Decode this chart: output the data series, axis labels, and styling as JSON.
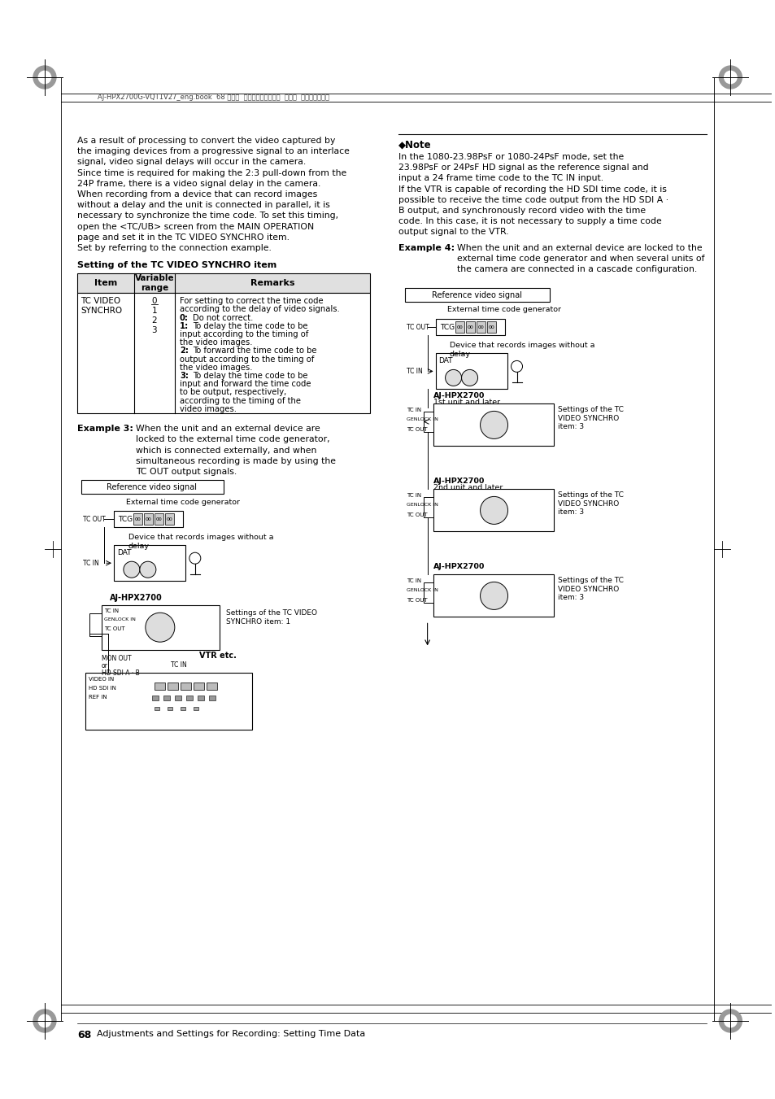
{
  "page_number": "68",
  "footer_text": "Adjustments and Settings for Recording: Setting Time Data",
  "header_file": "AJ-HPX2700G-VQT1V27_eng.book  68 ページ  ２００８年９月２日  火曜日  午後５時４３分",
  "body_left": [
    "As a result of processing to convert the video captured by",
    "the imaging devices from a progressive signal to an interlace",
    "signal, video signal delays will occur in the camera.",
    "Since time is required for making the 2:3 pull-down from the",
    "24P frame, there is a video signal delay in the camera.",
    "When recording from a device that can record images",
    "without a delay and the unit is connected in parallel, it is",
    "necessary to synchronize the time code. To set this timing,",
    "open the <TC/UB> screen from the MAIN OPERATION",
    "page and set it in the TC VIDEO SYNCHRO item.",
    "Set by referring to the connection example."
  ],
  "table_title": "Setting of the TC VIDEO SYNCHRO item",
  "note_title": "◆Note",
  "note_text": [
    "In the 1080-23.98PsF or 1080-24PsF mode, set the",
    "23.98PsF or 24PsF HD signal as the reference signal and",
    "input a 24 frame time code to the TC IN input.",
    "If the VTR is capable of recording the HD SDI time code, it is",
    "possible to receive the time code output from the HD SDI A ·",
    "B output, and synchronously record video with the time",
    "code. In this case, it is not necessary to supply a time code",
    "output signal to the VTR."
  ],
  "example4_text": [
    "When the unit and an external device are locked to the",
    "external time code generator and when several units of",
    "the camera are connected in a cascade configuration."
  ],
  "remarks_lines": [
    [
      "",
      "For setting to correct the time code"
    ],
    [
      "",
      "according to the delay of video signals."
    ],
    [
      "0:",
      "Do not correct."
    ],
    [
      "1:",
      "To delay the time code to be"
    ],
    [
      "",
      "input according to the timing of"
    ],
    [
      "",
      "the video images."
    ],
    [
      "2:",
      "To forward the time code to be"
    ],
    [
      "",
      "output according to the timing of"
    ],
    [
      "",
      "the video images."
    ],
    [
      "3:",
      "To delay the time code to be"
    ],
    [
      "",
      "input and forward the time code"
    ],
    [
      "",
      "to be output, respectively,"
    ],
    [
      "",
      "according to the timing of the"
    ],
    [
      "",
      "video images."
    ]
  ],
  "background_color": "#ffffff",
  "text_color": "#000000"
}
